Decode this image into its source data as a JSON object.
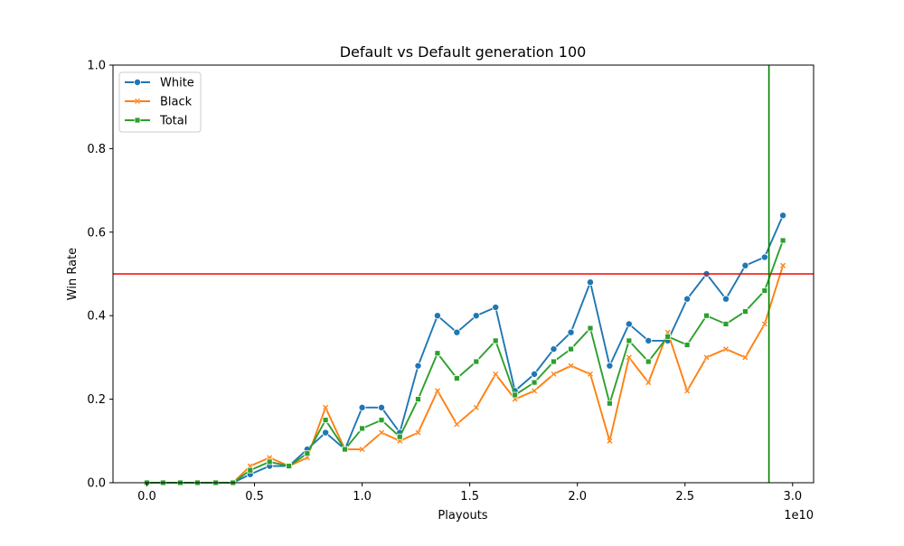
{
  "chart_data": {
    "type": "line",
    "title": "Default vs Default generation 100",
    "xlabel": "Playouts",
    "ylabel": "Win Rate",
    "x_offset_label": "1e10",
    "xlim": [
      -0.1575,
      3.0975
    ],
    "ylim": [
      0,
      1
    ],
    "x_ticks": [
      0,
      0.5,
      1,
      1.5,
      2,
      2.5,
      3
    ],
    "x_tick_labels": [
      "0.0",
      "0.5",
      "1.0",
      "1.5",
      "2.0",
      "2.5",
      "3.0"
    ],
    "y_ticks": [
      0,
      0.2,
      0.4,
      0.6,
      0.8,
      1
    ],
    "y_tick_labels": [
      "0.0",
      "0.2",
      "0.4",
      "0.6",
      "0.8",
      "1.0"
    ],
    "grid": false,
    "legend_position": "top-left",
    "x": [
      0.0,
      0.075,
      0.155,
      0.235,
      0.32,
      0.4,
      0.48,
      0.57,
      0.66,
      0.745,
      0.83,
      0.92,
      1.0,
      1.09,
      1.175,
      1.26,
      1.35,
      1.44,
      1.53,
      1.62,
      1.71,
      1.8,
      1.89,
      1.97,
      2.06,
      2.15,
      2.24,
      2.33,
      2.42,
      2.51,
      2.6,
      2.69,
      2.78,
      2.87,
      2.955
    ],
    "series": [
      {
        "name": "White",
        "color": "#1f77b4",
        "marker": "circle",
        "values": [
          0,
          0,
          0,
          0,
          0,
          0,
          0.02,
          0.04,
          0.04,
          0.08,
          0.12,
          0.08,
          0.18,
          0.18,
          0.12,
          0.28,
          0.4,
          0.36,
          0.4,
          0.42,
          0.22,
          0.26,
          0.32,
          0.36,
          0.48,
          0.28,
          0.38,
          0.34,
          0.34,
          0.44,
          0.5,
          0.44,
          0.52,
          0.54,
          0.64
        ]
      },
      {
        "name": "Black",
        "color": "#ff7f0e",
        "marker": "x",
        "values": [
          0,
          0,
          0,
          0,
          0,
          0,
          0.04,
          0.06,
          0.04,
          0.06,
          0.18,
          0.08,
          0.08,
          0.12,
          0.1,
          0.12,
          0.22,
          0.14,
          0.18,
          0.26,
          0.2,
          0.22,
          0.26,
          0.28,
          0.26,
          0.1,
          0.3,
          0.24,
          0.36,
          0.22,
          0.3,
          0.32,
          0.3,
          0.38,
          0.52
        ]
      },
      {
        "name": "Total",
        "color": "#2ca02c",
        "marker": "square",
        "values": [
          0,
          0,
          0,
          0,
          0,
          0,
          0.03,
          0.05,
          0.04,
          0.07,
          0.15,
          0.08,
          0.13,
          0.15,
          0.11,
          0.2,
          0.31,
          0.25,
          0.29,
          0.34,
          0.21,
          0.24,
          0.29,
          0.32,
          0.37,
          0.19,
          0.34,
          0.29,
          0.35,
          0.33,
          0.4,
          0.38,
          0.41,
          0.46,
          0.58
        ]
      }
    ],
    "reference_lines": [
      {
        "orientation": "horizontal",
        "value": 0.5,
        "color": "#ff0000"
      },
      {
        "orientation": "vertical",
        "value": 2.89,
        "color": "#008000"
      }
    ]
  }
}
